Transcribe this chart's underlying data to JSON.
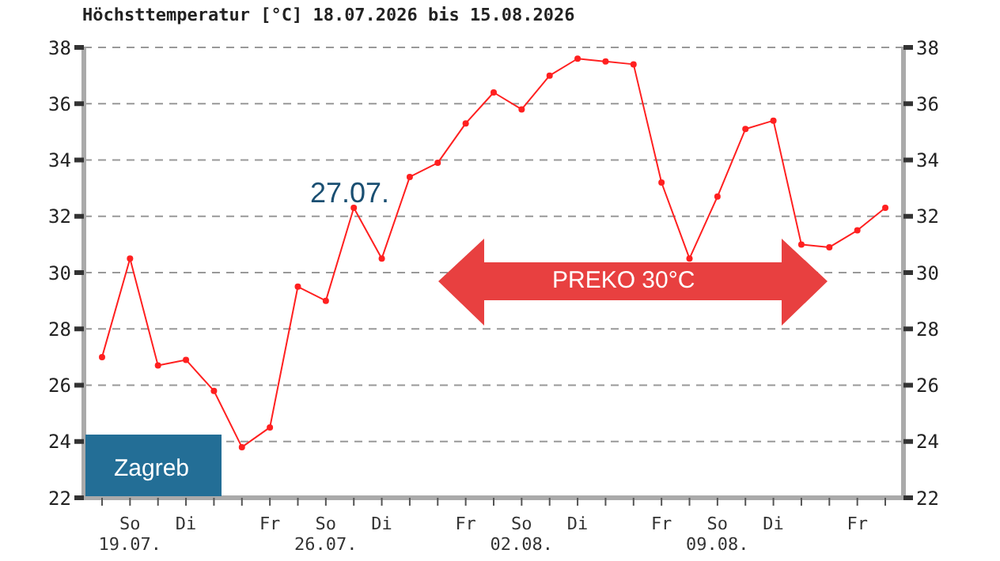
{
  "chart_data": {
    "type": "line",
    "title": "Höchsttemperatur [°C] 18.07.2026 bis 15.08.2026",
    "categories": [
      null,
      "So\n19.07.",
      null,
      "Di",
      null,
      null,
      "Fr",
      null,
      "So\n26.07.",
      null,
      "Di",
      null,
      null,
      "Fr",
      null,
      "So\n02.08.",
      null,
      "Di",
      null,
      null,
      "Fr",
      null,
      "So\n09.08.",
      null,
      "Di",
      null,
      null,
      "Fr",
      null
    ],
    "series": [
      {
        "color": "#ff2020",
        "values": [
          27.0,
          30.5,
          26.7,
          26.9,
          25.8,
          23.8,
          24.5,
          29.5,
          29.0,
          32.3,
          30.5,
          33.4,
          33.9,
          35.3,
          36.4,
          35.8,
          37.0,
          37.6,
          37.5,
          37.4,
          33.2,
          30.5,
          32.7,
          35.1,
          35.4,
          31.0,
          30.9,
          31.5,
          32.3
        ]
      }
    ],
    "ylim": [
      22,
      38
    ],
    "yticks": [
      22,
      24,
      26,
      28,
      30,
      32,
      34,
      36,
      38
    ],
    "y2lim": [
      22,
      38
    ],
    "y2ticks": [
      22,
      24,
      26,
      28,
      30,
      32,
      34,
      36,
      38
    ],
    "grid": "y",
    "marker": "circle",
    "line_style": "solid",
    "annotations": [
      "27.07.",
      "PREKO 30°C",
      "Zagreb"
    ]
  }
}
